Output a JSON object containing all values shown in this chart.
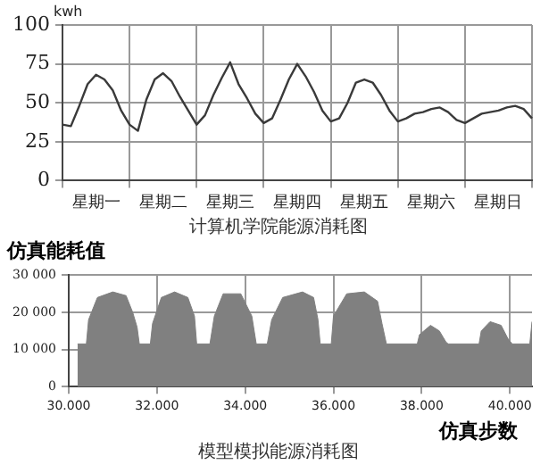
{
  "chart_data": [
    {
      "type": "line",
      "title": "计算机学院能源消耗图",
      "ylabel": "kwh",
      "color": "#3a3a3a",
      "marker": "none",
      "grid": true,
      "categories": [
        null,
        null,
        null,
        null,
        "星期一",
        null,
        null,
        null,
        null,
        null,
        null,
        null,
        "星期二",
        null,
        null,
        null,
        null,
        null,
        null,
        null,
        "星期三",
        null,
        null,
        null,
        null,
        null,
        null,
        null,
        "星期四",
        null,
        null,
        null,
        null,
        null,
        null,
        null,
        "星期五",
        null,
        null,
        null,
        null,
        null,
        null,
        null,
        "星期六",
        null,
        null,
        null,
        null,
        null,
        null,
        null,
        "星期日",
        null,
        null,
        null,
        null
      ],
      "values": [
        36,
        35,
        48,
        62,
        68,
        65,
        58,
        45,
        36,
        32,
        52,
        65,
        69,
        64,
        54,
        45,
        36,
        42,
        55,
        66,
        76,
        62,
        53,
        43,
        37,
        40,
        52,
        65,
        75,
        67,
        57,
        45,
        38,
        40,
        50,
        63,
        65,
        63,
        55,
        45,
        38,
        40,
        43,
        44,
        46,
        47,
        44,
        39,
        37,
        40,
        43,
        44,
        45,
        47,
        48,
        46,
        40
      ],
      "ylim": [
        0,
        100
      ],
      "yticks": [
        0,
        25,
        50,
        75,
        100
      ]
    },
    {
      "type": "area",
      "title": "模型模拟能源消耗图",
      "xlabel": "仿真步数",
      "ylabel": "仿真能耗值",
      "color": "#808080",
      "marker": "none",
      "grid": true,
      "x": [
        30200,
        30400,
        30450,
        30650,
        31000,
        31300,
        31450,
        31550,
        31600,
        31850,
        31900,
        32100,
        32400,
        32700,
        32850,
        32900,
        33200,
        33300,
        33500,
        33900,
        34150,
        34250,
        34500,
        34600,
        34850,
        35300,
        35550,
        35650,
        35700,
        35950,
        36000,
        36300,
        36700,
        37000,
        37100,
        37200,
        37900,
        37950,
        38200,
        38400,
        38550,
        38600,
        39300,
        39350,
        39550,
        39800,
        39950,
        40050,
        40450,
        40500
      ],
      "values": [
        11500,
        11500,
        18000,
        24000,
        25500,
        24500,
        20000,
        16000,
        11500,
        11500,
        17000,
        24000,
        25500,
        24000,
        19000,
        11500,
        11500,
        19000,
        25000,
        25000,
        19000,
        11500,
        11500,
        18000,
        24000,
        25500,
        24000,
        18000,
        11500,
        11500,
        19000,
        25000,
        25500,
        23000,
        17000,
        11500,
        11500,
        14000,
        16500,
        15000,
        12000,
        11500,
        11500,
        15000,
        17500,
        16500,
        13000,
        11500,
        11500,
        17500
      ],
      "xlim": [
        30000,
        40500
      ],
      "xticks": [
        {
          "value": 30000,
          "label": "30.000"
        },
        {
          "value": 32000,
          "label": "32.000"
        },
        {
          "value": 34000,
          "label": "34.000"
        },
        {
          "value": 36000,
          "label": "36.000"
        },
        {
          "value": 38000,
          "label": "38.000"
        },
        {
          "value": 40000,
          "label": "40.000"
        }
      ],
      "ylim": [
        0,
        30000
      ],
      "yticks": [
        0,
        {
          "value": 10000,
          "label": "10 000"
        },
        {
          "value": 20000,
          "label": "20 000"
        },
        {
          "value": 30000,
          "label": "30 000"
        }
      ]
    }
  ]
}
